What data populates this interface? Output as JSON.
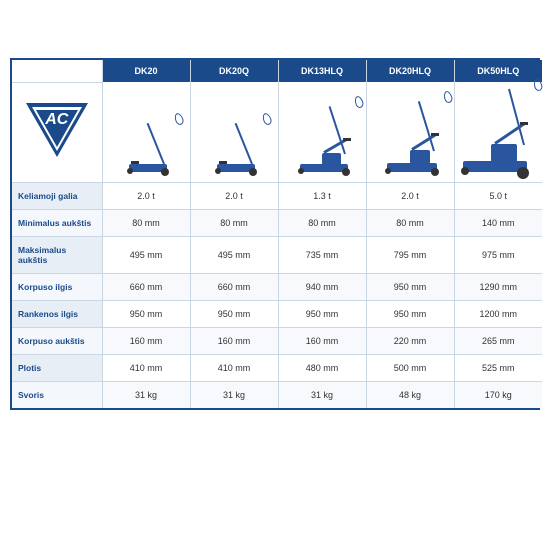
{
  "logo_text": "AC",
  "models": [
    "DK20",
    "DK20Q",
    "DK13HLQ",
    "DK20HLQ",
    "DK50HLQ"
  ],
  "rows": [
    {
      "label": "Keliamoji galia",
      "vals": [
        "2.0 t",
        "2.0 t",
        "1.3 t",
        "2.0 t",
        "5.0 t"
      ]
    },
    {
      "label": "Minimalus aukštis",
      "vals": [
        "80 mm",
        "80 mm",
        "80 mm",
        "80 mm",
        "140 mm"
      ]
    },
    {
      "label": "Maksimalus aukštis",
      "vals": [
        "495 mm",
        "495 mm",
        "735 mm",
        "795 mm",
        "975 mm"
      ]
    },
    {
      "label": "Korpuso ilgis",
      "vals": [
        "660 mm",
        "660 mm",
        "940 mm",
        "950 mm",
        "1290 mm"
      ]
    },
    {
      "label": "Rankenos ilgis",
      "vals": [
        "950 mm",
        "950 mm",
        "950 mm",
        "950 mm",
        "1200 mm"
      ]
    },
    {
      "label": "Korpuso aukštis",
      "vals": [
        "160 mm",
        "160 mm",
        "160 mm",
        "220 mm",
        "265 mm"
      ]
    },
    {
      "label": "Plotis",
      "vals": [
        "410 mm",
        "410 mm",
        "480 mm",
        "500 mm",
        "525 mm"
      ]
    },
    {
      "label": "Svoris",
      "vals": [
        "31 kg",
        "31 kg",
        "31 kg",
        "48 kg",
        "170 kg"
      ]
    }
  ],
  "jack_style": [
    {
      "base_w": 38,
      "base_h": 8,
      "body_h": 0,
      "handle_h": 44,
      "handle_rot": -22,
      "arm_rot": 0,
      "big": false
    },
    {
      "base_w": 38,
      "base_h": 8,
      "body_h": 0,
      "handle_h": 44,
      "handle_rot": -22,
      "arm_rot": 0,
      "big": false
    },
    {
      "base_w": 48,
      "base_h": 8,
      "body_h": 12,
      "handle_h": 50,
      "handle_rot": -18,
      "arm_rot": -30,
      "big": false
    },
    {
      "base_w": 50,
      "base_h": 9,
      "body_h": 14,
      "handle_h": 52,
      "handle_rot": -17,
      "arm_rot": -32,
      "big": false
    },
    {
      "base_w": 64,
      "base_h": 11,
      "body_h": 18,
      "handle_h": 58,
      "handle_rot": -15,
      "arm_rot": -34,
      "big": true
    }
  ]
}
